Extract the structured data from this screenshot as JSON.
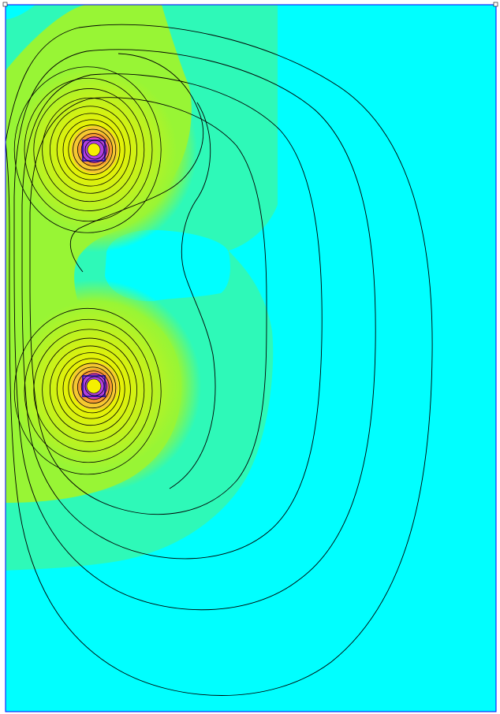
{
  "figure": {
    "kind": "field contour plot",
    "palette": {
      "background": "#00FFFF",
      "low_field": "#2EF9B8",
      "mid_field": "#98F535",
      "high_field": "#F5F000",
      "peak_orange": "#F59A30",
      "peak_magenta": "#E040C0",
      "conductor_outline": "#3A1AA8",
      "contour_line": "#000000",
      "boundary_line": "#0000FF"
    }
  }
}
